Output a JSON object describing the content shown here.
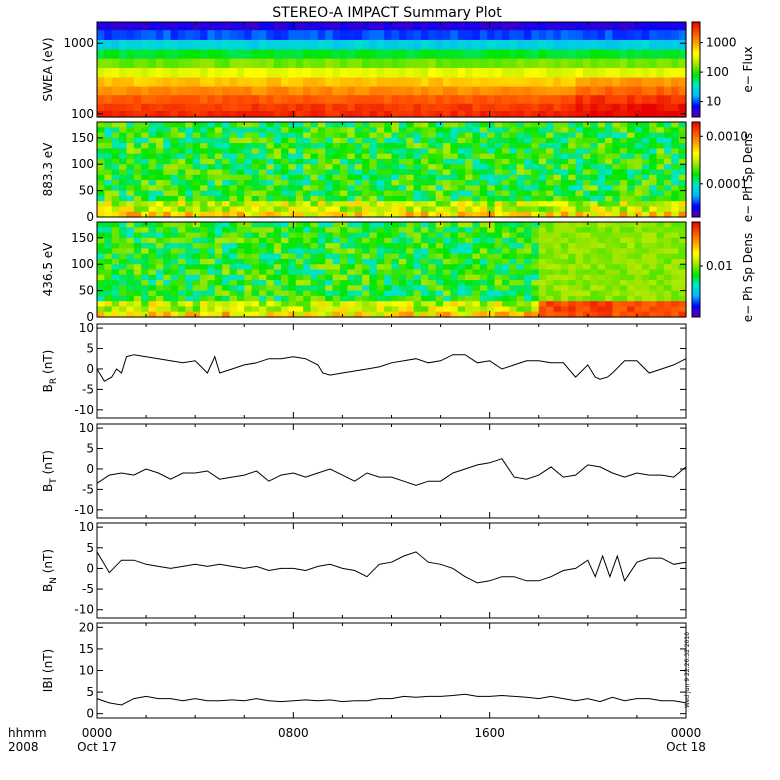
{
  "title": "STEREO-A IMPACT Summary Plot",
  "timestamp": "Wed Jun 9 22:26:32 2010",
  "x_axis": {
    "row1_label": "hhmm",
    "row2_label": "2008",
    "ticks": [
      {
        "hhmm": "0000",
        "date": "Oct 17",
        "hours": 0
      },
      {
        "hhmm": "0800",
        "date": "",
        "hours": 8
      },
      {
        "hhmm": "1600",
        "date": "",
        "hours": 16
      },
      {
        "hhmm": "0000",
        "date": "Oct 18",
        "hours": 24
      }
    ]
  },
  "colors": {
    "colorbar": [
      "#5a00b4",
      "#0000ff",
      "#00b4ff",
      "#00e6c8",
      "#00e600",
      "#a0e600",
      "#ffff00",
      "#ffa000",
      "#ff5000",
      "#e60000"
    ],
    "background": "#ffffff",
    "line": "#000000"
  },
  "chart_data": [
    {
      "type": "heatmap",
      "ylabel": "SWEA (eV)",
      "y_scale": "log",
      "ylim": [
        90,
        2000
      ],
      "yticks": [
        "1000",
        "100"
      ],
      "ytick_values": [
        1000,
        100
      ],
      "colorbar_label": "e− Flux",
      "colorbar_ticks": [
        "1000",
        "100",
        "10"
      ],
      "colorbar_tick_values": [
        1000,
        100,
        10
      ],
      "colorbar_range": [
        3,
        5000
      ],
      "energy_levels_eV": [
        1800,
        1300,
        950,
        700,
        520,
        380,
        280,
        210,
        160,
        120,
        100
      ],
      "level_flux": [
        5,
        10,
        25,
        70,
        150,
        350,
        700,
        1200,
        2000,
        2800,
        3300
      ],
      "description_hours_of_enhancement": [
        19.5,
        24
      ]
    },
    {
      "type": "heatmap",
      "ylabel": "883.3 eV",
      "ylim": [
        0,
        180
      ],
      "yticks": [
        "150",
        "100",
        "50",
        "0"
      ],
      "ytick_values": [
        150,
        100,
        50,
        0
      ],
      "colorbar_label": "e− Ph Sp Dens",
      "colorbar_ticks": [
        "0.0010",
        "0.0001"
      ],
      "colorbar_tick_values": [
        0.001,
        0.0001
      ],
      "colorbar_range": [
        2e-05,
        0.002
      ]
    },
    {
      "type": "heatmap",
      "ylabel": "436.5 eV",
      "ylim": [
        0,
        180
      ],
      "yticks": [
        "150",
        "100",
        "50",
        "0"
      ],
      "ytick_values": [
        150,
        100,
        50,
        0
      ],
      "colorbar_label": "e− Ph Sp Dens",
      "colorbar_ticks": [
        "0.01"
      ],
      "colorbar_tick_values": [
        0.01
      ],
      "colorbar_range": [
        0.002,
        0.04
      ]
    },
    {
      "type": "line",
      "ylabel": "B",
      "ylabel_sub": "R",
      "ylabel_unit": "(nT)",
      "ylim": [
        -12,
        11
      ],
      "yticks": [
        "10",
        "5",
        "0",
        "-5",
        "-10"
      ],
      "ytick_values": [
        10,
        5,
        0,
        -5,
        -10
      ],
      "x_hours": [
        0,
        0.3,
        0.6,
        0.8,
        1.0,
        1.2,
        1.5,
        2,
        2.5,
        3,
        3.5,
        4,
        4.5,
        4.8,
        5,
        5.5,
        6,
        6.5,
        7,
        7.5,
        8,
        8.5,
        9,
        9.2,
        9.5,
        10,
        10.5,
        11,
        11.5,
        12,
        12.5,
        13,
        13.5,
        14,
        14.5,
        15,
        15.5,
        16,
        16.5,
        17,
        17.5,
        18,
        18.5,
        19,
        19.5,
        20,
        20.3,
        20.5,
        20.8,
        21,
        21.5,
        22,
        22.5,
        23,
        23.5,
        24
      ],
      "y_values": [
        0,
        -3,
        -2,
        0,
        -1,
        3,
        3.5,
        3,
        2.5,
        2,
        1.5,
        2,
        -1,
        3,
        -1,
        0,
        1,
        1.5,
        2.5,
        2.5,
        3,
        2.5,
        1,
        -1,
        -1.5,
        -1,
        -0.5,
        0,
        0.5,
        1.5,
        2,
        2.5,
        1.5,
        2,
        3.5,
        3.5,
        1.5,
        2,
        0,
        1,
        2,
        2,
        1.5,
        1.5,
        -2,
        1,
        -2,
        -2.5,
        -2,
        -1,
        2,
        2,
        -1,
        0,
        1,
        2.5
      ]
    },
    {
      "type": "line",
      "ylabel": "B",
      "ylabel_sub": "T",
      "ylabel_unit": "(nT)",
      "ylim": [
        -12,
        11
      ],
      "yticks": [
        "10",
        "5",
        "0",
        "-5",
        "-10"
      ],
      "ytick_values": [
        10,
        5,
        0,
        -5,
        -10
      ],
      "x_hours": [
        0,
        0.5,
        1,
        1.5,
        2,
        2.5,
        3,
        3.5,
        4,
        4.5,
        5,
        5.5,
        6,
        6.5,
        7,
        7.5,
        8,
        8.5,
        9,
        9.5,
        10,
        10.5,
        11,
        11.5,
        12,
        12.5,
        13,
        13.5,
        14,
        14.5,
        15,
        15.5,
        16,
        16.5,
        17,
        17.5,
        18,
        18.5,
        19,
        19.5,
        20,
        20.5,
        21,
        21.5,
        22,
        22.5,
        23,
        23.5,
        24
      ],
      "y_values": [
        -3.5,
        -1.5,
        -1,
        -1.5,
        0,
        -1,
        -2.5,
        -1,
        -1,
        -0.5,
        -2.5,
        -2,
        -1.5,
        -0.5,
        -3,
        -1.5,
        -1,
        -2,
        -1,
        0,
        -1.5,
        -3,
        -1,
        -2,
        -2,
        -3,
        -4,
        -3,
        -3,
        -1,
        0,
        1,
        1.5,
        2.5,
        -2,
        -2.5,
        -1.5,
        0.5,
        -2,
        -1.5,
        1,
        0.5,
        -1,
        -2,
        -1,
        -1.5,
        -1.5,
        -2,
        0.5
      ]
    },
    {
      "type": "line",
      "ylabel": "B",
      "ylabel_sub": "N",
      "ylabel_unit": "(nT)",
      "ylim": [
        -12,
        11
      ],
      "yticks": [
        "10",
        "5",
        "0",
        "-5",
        "-10"
      ],
      "ytick_values": [
        10,
        5,
        0,
        -5,
        -10
      ],
      "x_hours": [
        0,
        0.5,
        1,
        1.5,
        2,
        2.5,
        3,
        3.5,
        4,
        4.5,
        5,
        5.5,
        6,
        6.5,
        7,
        7.5,
        8,
        8.5,
        9,
        9.5,
        10,
        10.5,
        11,
        11.5,
        12,
        12.5,
        13,
        13.5,
        14,
        14.5,
        15,
        15.5,
        16,
        16.5,
        17,
        17.5,
        18,
        18.5,
        19,
        19.5,
        20,
        20.3,
        20.6,
        20.9,
        21.2,
        21.5,
        22,
        22.5,
        23,
        23.5,
        24
      ],
      "y_values": [
        4,
        -1,
        2,
        2,
        1,
        0.5,
        0,
        0.5,
        1,
        0.5,
        1,
        0.5,
        0,
        0.5,
        -0.5,
        0,
        0,
        -0.5,
        0.5,
        1,
        0,
        -0.5,
        -2,
        1,
        1.5,
        3,
        4,
        1.5,
        1,
        0,
        -2,
        -3.5,
        -3,
        -2,
        -2,
        -3,
        -3,
        -2,
        -0.5,
        0,
        2,
        -2,
        3,
        -2,
        3,
        -3,
        1.5,
        2.5,
        2.5,
        1,
        1.5
      ]
    },
    {
      "type": "line",
      "ylabel": "IBI",
      "ylabel_unit": "(nT)",
      "ylim": [
        -1,
        21
      ],
      "yticks": [
        "20",
        "15",
        "10",
        "5",
        "0"
      ],
      "ytick_values": [
        20,
        15,
        10,
        5,
        0
      ],
      "x_hours": [
        0,
        0.5,
        1,
        1.5,
        2,
        2.5,
        3,
        3.5,
        4,
        4.5,
        5,
        5.5,
        6,
        6.5,
        7,
        7.5,
        8,
        8.5,
        9,
        9.5,
        10,
        10.5,
        11,
        11.5,
        12,
        12.5,
        13,
        13.5,
        14,
        14.5,
        15,
        15.5,
        16,
        16.5,
        17,
        17.5,
        18,
        18.5,
        19,
        19.5,
        20,
        20.5,
        21,
        21.5,
        22,
        22.5,
        23,
        23.5,
        24
      ],
      "y_values": [
        3.5,
        2.5,
        2,
        3.5,
        4,
        3.5,
        3.5,
        3,
        3.5,
        3,
        3,
        3.2,
        3,
        3.5,
        3,
        2.8,
        3,
        3.2,
        3,
        3.2,
        2.8,
        3,
        3,
        3.5,
        3.5,
        4,
        3.8,
        4,
        4,
        4.2,
        4.5,
        4,
        4,
        4.2,
        4,
        3.8,
        3.5,
        4,
        3.5,
        3,
        3.5,
        2.8,
        3.8,
        3,
        3.5,
        3.5,
        3,
        3,
        2.5
      ]
    }
  ]
}
